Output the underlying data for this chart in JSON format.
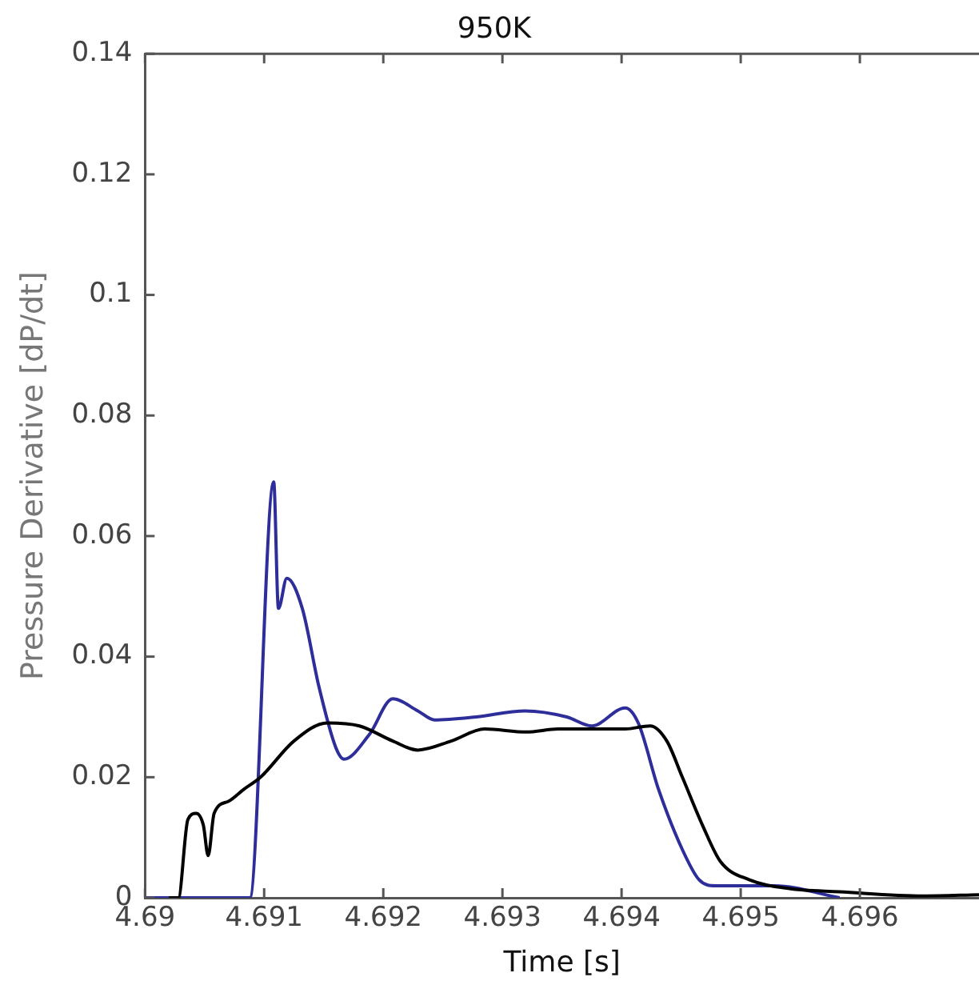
{
  "chart_data": {
    "type": "line",
    "title": "950K",
    "xlabel": "Time [s]",
    "ylabel": "Pressure Derivative [dP/dt]",
    "xlim": [
      4.69,
      4.697
    ],
    "xticks": [
      4.69,
      4.691,
      4.692,
      4.693,
      4.694,
      4.695,
      4.696
    ],
    "ylim": [
      0,
      0.14
    ],
    "yticks": [
      0,
      0.02,
      0.04,
      0.06,
      0.08,
      0.1,
      0.12,
      0.14
    ],
    "grid": false,
    "legend": false,
    "marker": "none",
    "line_style": "solid",
    "series": [
      {
        "color": "#000000",
        "x": [
          4.6902,
          4.69028,
          4.69036,
          4.69043,
          4.69049,
          4.69053,
          4.69058,
          4.6907,
          4.69083,
          4.69097,
          4.69125,
          4.69153,
          4.6918,
          4.69208,
          4.69229,
          4.69257,
          4.69285,
          4.6932,
          4.69347,
          4.69403,
          4.69424,
          4.69438,
          4.69451,
          4.69468,
          4.69483,
          4.69507,
          4.69542,
          4.69583,
          4.69653,
          4.697
        ],
        "values": [
          0,
          0,
          0.013,
          0.014,
          0.012,
          0.007,
          0.014,
          0.016,
          0.018,
          0.02,
          0.026,
          0.029,
          0.0285,
          0.026,
          0.0245,
          0.026,
          0.028,
          0.0275,
          0.028,
          0.028,
          0.0285,
          0.026,
          0.02,
          0.012,
          0.006,
          0.003,
          0.0015,
          0.001,
          0.0003,
          0.0005
        ]
      },
      {
        "color": "#2e2e9a",
        "x": [
          4.69,
          4.6901,
          4.69088,
          4.69108,
          4.69112,
          4.69119,
          4.69132,
          4.69146,
          4.6916,
          4.69167,
          4.69188,
          4.69208,
          4.69229,
          4.69243,
          4.69278,
          4.69319,
          4.69354,
          4.69375,
          4.69403,
          4.69414,
          4.69431,
          4.69451,
          4.69465,
          4.69479,
          4.69528,
          4.69583
        ],
        "values": [
          0,
          0,
          0,
          0.069,
          0.048,
          0.053,
          0.048,
          0.035,
          0.025,
          0.023,
          0.027,
          0.033,
          0.031,
          0.0295,
          0.03,
          0.031,
          0.03,
          0.0285,
          0.0315,
          0.029,
          0.018,
          0.008,
          0.003,
          0.002,
          0.002,
          0
        ]
      }
    ]
  }
}
